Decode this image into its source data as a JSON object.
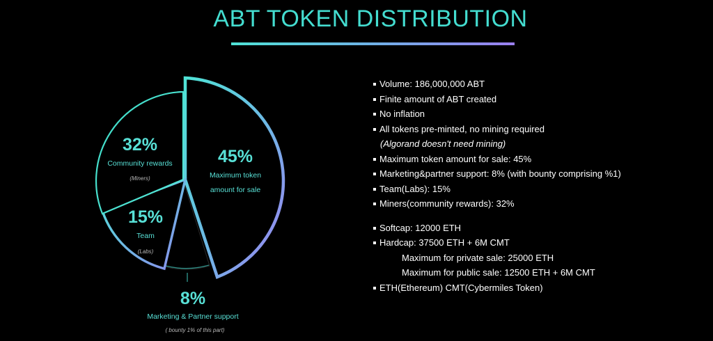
{
  "title": "ABT TOKEN DISTRIBUTION",
  "colors": {
    "teal": "#4fe3d6",
    "purple": "#9a7ff0",
    "background": "#000000"
  },
  "chart_data": {
    "type": "pie",
    "style": "exploded",
    "slices": [
      {
        "percent": 45,
        "percent_label": "45%",
        "label_lines": [
          "Maximum token",
          "amount for sale"
        ],
        "note": ""
      },
      {
        "percent": 8,
        "percent_label": "8%",
        "label_lines": [
          "Marketing & Partner support"
        ],
        "note": "( bounty 1% of this part)"
      },
      {
        "percent": 15,
        "percent_label": "15%",
        "label_lines": [
          "Team"
        ],
        "note": "(Labs)"
      },
      {
        "percent": 32,
        "percent_label": "32%",
        "label_lines": [
          "Community rewards"
        ],
        "note": "(Miners)"
      }
    ]
  },
  "details": {
    "lines": [
      {
        "kind": "bullet",
        "text": "Volume: 186,000,000 ABT"
      },
      {
        "kind": "bullet",
        "text": "Finite amount of ABT created"
      },
      {
        "kind": "bullet",
        "text": "No inflation"
      },
      {
        "kind": "bullet",
        "text": "All tokens pre-minted, no mining required"
      },
      {
        "kind": "note",
        "text": "(Algorand doesn't need mining)"
      },
      {
        "kind": "bullet",
        "text": "Maximum token amount for sale: 45%"
      },
      {
        "kind": "bullet",
        "text": "Marketing&partner support: 8% (with bounty comprising %1)"
      },
      {
        "kind": "bullet",
        "text": "Team(Labs): 15%"
      },
      {
        "kind": "bullet",
        "text": "Miners(community rewards): 32%"
      },
      {
        "kind": "gap",
        "text": ""
      },
      {
        "kind": "bullet",
        "text": "Softcap: 12000 ETH"
      },
      {
        "kind": "bullet",
        "text": "Hardcap: 37500 ETH + 6M CMT"
      },
      {
        "kind": "indent",
        "text": "Maximum for private sale: 25000 ETH"
      },
      {
        "kind": "indent",
        "text": "Maximum for public sale: 12500 ETH + 6M CMT"
      },
      {
        "kind": "bullet",
        "text": "ETH(Ethereum) CMT(Cybermiles Token)"
      }
    ]
  }
}
